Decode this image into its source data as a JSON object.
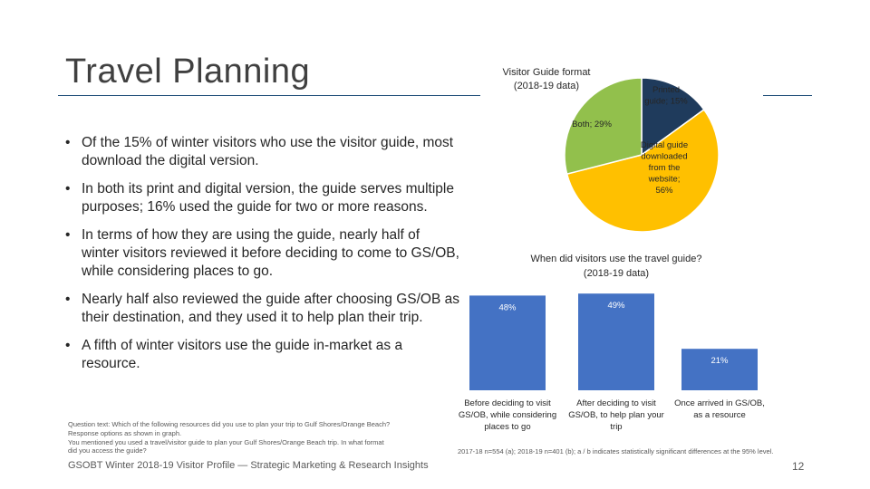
{
  "page": {
    "title": "Travel Planning",
    "bullets": [
      "Of the 15% of winter visitors who use the visitor guide, most download the digital version.",
      "In both its print and digital version, the guide serves multiple purposes; 16% used the guide for two or more reasons.",
      "In terms of how they are using the guide, nearly half of winter visitors reviewed it before deciding to come to GS/OB, while considering places to go.",
      "Nearly half also reviewed the guide after choosing GS/OB as their destination, and they used it to help plan their trip.",
      "A fifth of winter visitors use the guide in-market as a resource."
    ],
    "bullet_symbol": "•",
    "footnote": [
      "Question text: Which of the following resources did you use to plan your trip to Gulf Shores/Orange Beach?",
      "Response options as shown in graph.",
      "You mentioned you used a travel/visitor guide to plan your Gulf Shores/Orange Beach trip. In what format",
      "did you access the guide?"
    ],
    "footer_left": "GSOBT Winter 2018-19 Visitor Profile — Strategic Marketing & Research Insights",
    "footer_right": "2017-18 n=554 (a); 2018-19 n=401 (b); a / b indicates statistically significant differences at the 95% level.",
    "page_number": "12"
  },
  "colors": {
    "navy": "#1f3b5c",
    "green": "#92c04c",
    "yellow": "#ffc000",
    "bar_blue": "#4472c4"
  },
  "chart_data": [
    {
      "type": "pie",
      "title": "Visitor Guide format",
      "subtitle": "(2018-19 data)",
      "slices": [
        {
          "label": "Printed guide; 15%",
          "value": 15,
          "color": "#1f3b5c",
          "label_lines": [
            "Printed",
            "guide; 15%"
          ]
        },
        {
          "label": "Digital guide downloaded from the website; 56%",
          "value": 56,
          "color": "#ffc000",
          "label_lines": [
            "Digital guide",
            "downloaded",
            "from the",
            "website;",
            "56%"
          ]
        },
        {
          "label": "Both; 29%",
          "value": 29,
          "color": "#92c04c",
          "label_lines": [
            "Both; 29%"
          ]
        }
      ]
    },
    {
      "type": "bar",
      "title": "When did visitors use the travel guide?",
      "subtitle": "(2018-19 data)",
      "categories": [
        [
          "Before deciding to visit",
          "GS/OB, while considering",
          "places to go"
        ],
        [
          "After deciding to visit",
          "GS/OB, to help plan your",
          "trip"
        ],
        [
          "Once arrived in GS/OB,",
          "as a resource"
        ]
      ],
      "values": [
        48,
        49,
        21
      ],
      "data_labels": [
        "48%",
        "49%",
        "21%"
      ],
      "ylim": [
        0,
        50
      ],
      "grid": false
    }
  ]
}
